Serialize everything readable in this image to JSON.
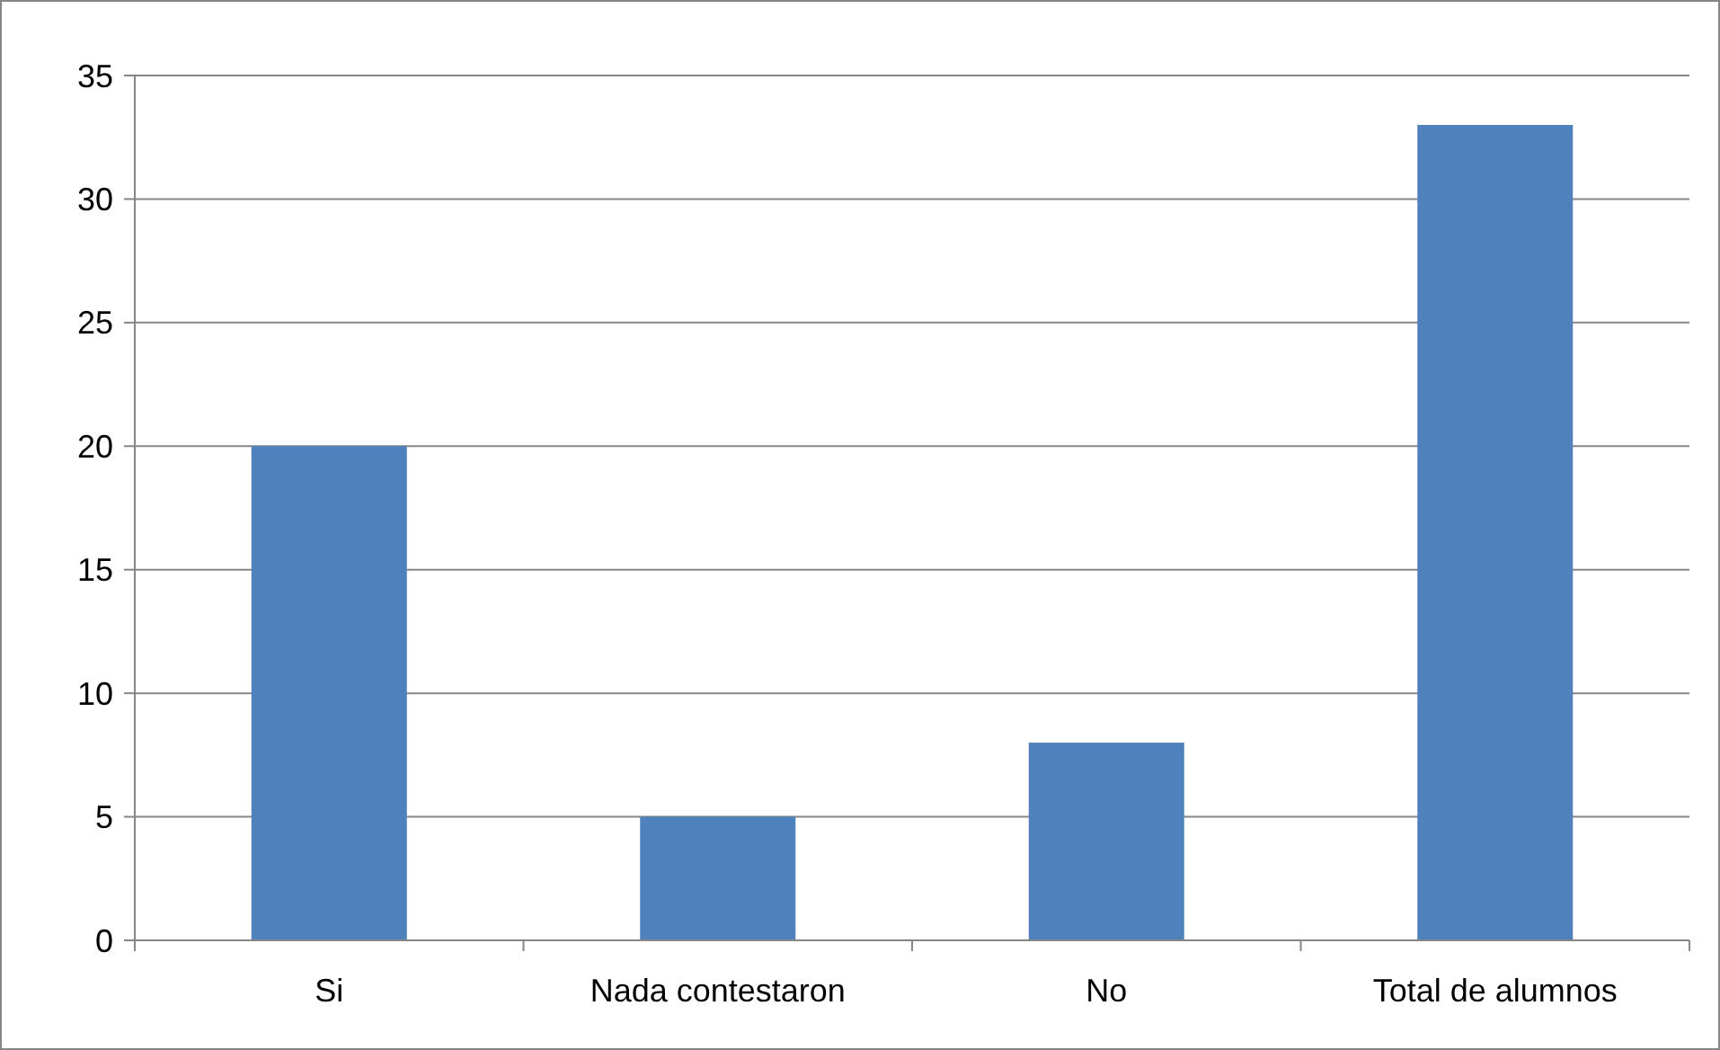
{
  "chart_data": {
    "type": "bar",
    "categories": [
      "Si",
      "Nada contestaron",
      "No",
      "Total de alumnos"
    ],
    "values": [
      20,
      5,
      8,
      33
    ],
    "color": "#4f81bd",
    "ylim": [
      0,
      35
    ],
    "yticks": [
      0,
      5,
      10,
      15,
      20,
      25,
      30,
      35
    ],
    "grid": "y"
  }
}
